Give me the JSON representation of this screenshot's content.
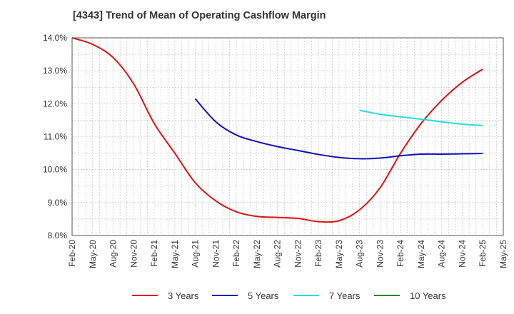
{
  "title": "[4343]  Trend of Mean of Operating Cashflow Margin",
  "chart_data": {
    "type": "line",
    "title": "[4343]  Trend of Mean of Operating Cashflow Margin",
    "xlabel": "",
    "ylabel": "",
    "ylim": [
      8.0,
      14.0
    ],
    "y_ticks": [
      "8.0%",
      "9.0%",
      "10.0%",
      "11.0%",
      "12.0%",
      "13.0%",
      "14.0%"
    ],
    "x_ticks": [
      "Feb-20",
      "May-20",
      "Aug-20",
      "Nov-20",
      "Feb-21",
      "May-21",
      "Aug-21",
      "Nov-21",
      "Feb-22",
      "May-22",
      "Aug-22",
      "Nov-22",
      "Feb-23",
      "May-23",
      "Aug-23",
      "Nov-23",
      "Feb-24",
      "May-24",
      "Aug-24",
      "Nov-24",
      "Feb-25",
      "May-25"
    ],
    "grid": true,
    "legend_position": "bottom",
    "series": [
      {
        "name": "3 Years",
        "color": "#dd1111",
        "x": [
          "Feb-20",
          "May-20",
          "Aug-20",
          "Nov-20",
          "Feb-21",
          "May-21",
          "Aug-21",
          "Nov-21",
          "Feb-22",
          "May-22",
          "Aug-22",
          "Nov-22",
          "Feb-23",
          "May-23",
          "Aug-23",
          "Nov-23",
          "Feb-24",
          "May-24",
          "Aug-24",
          "Nov-24",
          "Feb-25"
        ],
        "values": [
          14.0,
          13.8,
          13.4,
          12.6,
          11.4,
          10.5,
          9.6,
          9.05,
          8.72,
          8.58,
          8.55,
          8.52,
          8.42,
          8.45,
          8.78,
          9.45,
          10.5,
          11.4,
          12.1,
          12.65,
          13.05
        ]
      },
      {
        "name": "5 Years",
        "color": "#1111bb",
        "x": [
          "Aug-21",
          "Nov-21",
          "Feb-22",
          "May-22",
          "Aug-22",
          "Nov-22",
          "Feb-23",
          "May-23",
          "Aug-23",
          "Nov-23",
          "Feb-24",
          "May-24",
          "Aug-24",
          "Nov-24",
          "Feb-25"
        ],
        "values": [
          12.15,
          11.45,
          11.05,
          10.85,
          10.7,
          10.58,
          10.46,
          10.37,
          10.33,
          10.35,
          10.42,
          10.47,
          10.47,
          10.48,
          10.49
        ]
      },
      {
        "name": "7 Years",
        "color": "#22dddd",
        "x": [
          "Aug-23",
          "Nov-23",
          "Feb-24",
          "May-24",
          "Aug-24",
          "Nov-24",
          "Feb-25"
        ],
        "values": [
          11.8,
          11.68,
          11.6,
          11.53,
          11.45,
          11.38,
          11.34
        ]
      },
      {
        "name": "10 Years",
        "color": "#228822",
        "x": [],
        "values": []
      }
    ]
  }
}
